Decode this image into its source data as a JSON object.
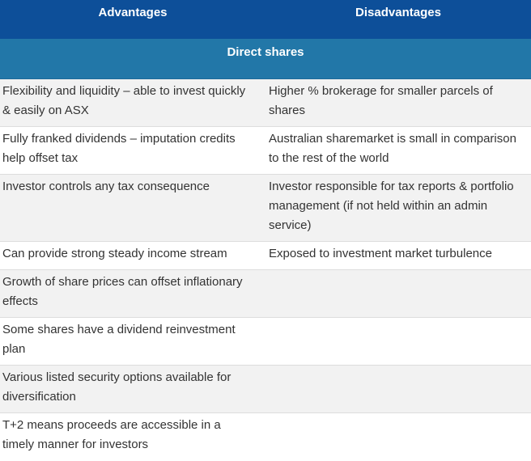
{
  "headers": {
    "advantages": "Advantages",
    "disadvantages": "Disadvantages"
  },
  "section_title": "Direct shares",
  "rows": [
    {
      "advantage": "Flexibility and liquidity – able to invest quickly & easily on ASX",
      "disadvantage": "Higher % brokerage for smaller parcels of shares"
    },
    {
      "advantage": "Fully franked dividends – imputation credits help offset tax",
      "disadvantage": "Australian sharemarket is small in comparison to the rest of the world"
    },
    {
      "advantage": "Investor controls any tax consequence",
      "disadvantage": "Investor responsible for tax reports & portfolio management (if not held within an admin service)"
    },
    {
      "advantage": "Can provide strong steady income stream",
      "disadvantage": "Exposed to investment market turbulence"
    },
    {
      "advantage": "Growth of share prices can offset inflationary effects",
      "disadvantage": ""
    },
    {
      "advantage": "Some shares have a dividend reinvestment plan",
      "disadvantage": ""
    },
    {
      "advantage": "Various listed security options available for diversification",
      "disadvantage": ""
    },
    {
      "advantage": "T+2 means proceeds are accessible in a timely manner for investors",
      "disadvantage": ""
    }
  ]
}
